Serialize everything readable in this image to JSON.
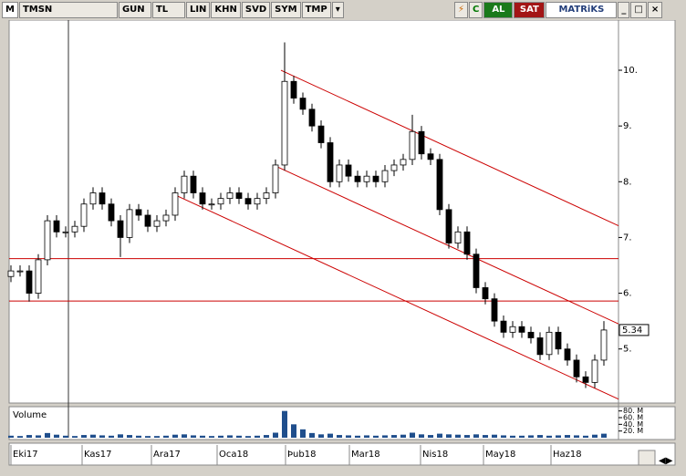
{
  "toolbar": {
    "logo": "M",
    "symbol": "TMSN",
    "buttons": [
      "GUN",
      "TL",
      "LIN",
      "KHN",
      "SVD",
      "SYM",
      "TMP"
    ],
    "buy": "AL",
    "sell": "SAT",
    "brand": "MATRiKS"
  },
  "chart_data": {
    "type": "candlestick",
    "xlim": [
      -0.2,
      66.6
    ],
    "xticks": [
      {
        "value": 0,
        "label": "Eki17"
      },
      {
        "value": 7.8,
        "label": "Kas17"
      },
      {
        "value": 15.4,
        "label": "Ara17"
      },
      {
        "value": 22.6,
        "label": "Oca18"
      },
      {
        "value": 30.1,
        "label": "Þub18"
      },
      {
        "value": 37.1,
        "label": "Mar18"
      },
      {
        "value": 44.9,
        "label": "Nis18"
      },
      {
        "value": 51.8,
        "label": "May18"
      },
      {
        "value": 59.2,
        "label": "Haz18"
      }
    ],
    "ylim": [
      4.03,
      10.9
    ],
    "yticks": [
      {
        "value": 10,
        "label": "10."
      },
      {
        "value": 9,
        "label": "9."
      },
      {
        "value": 8,
        "label": "8."
      },
      {
        "value": 7,
        "label": "7."
      },
      {
        "value": 6,
        "label": "6."
      },
      {
        "value": 5,
        "label": "5."
      }
    ],
    "last_price": 5.34,
    "cursor_x": 6.3,
    "hlines": [
      6.62,
      5.86
    ],
    "trendlines": [
      {
        "x": [
          29.6,
          66.6
        ],
        "y": [
          10.0,
          7.21
        ]
      },
      {
        "x": [
          29.3,
          66.6
        ],
        "y": [
          8.26,
          5.45
        ]
      },
      {
        "x": [
          18.3,
          66.6
        ],
        "y": [
          7.74,
          4.1
        ]
      }
    ],
    "line_color": "#cc0000",
    "open": [
      6.3,
      6.4,
      6.4,
      6.0,
      6.6,
      7.3,
      7.1,
      7.1,
      7.2,
      7.6,
      7.8,
      7.6,
      7.3,
      7.0,
      7.5,
      7.4,
      7.2,
      7.3,
      7.4,
      7.8,
      8.1,
      7.8,
      7.6,
      7.6,
      7.7,
      7.8,
      7.7,
      7.6,
      7.7,
      7.8,
      8.3,
      9.8,
      9.5,
      9.3,
      9.0,
      8.7,
      8.0,
      8.3,
      8.1,
      8.0,
      8.1,
      8.0,
      8.2,
      8.3,
      8.4,
      8.9,
      8.5,
      8.4,
      7.5,
      6.9,
      7.1,
      6.7,
      6.1,
      5.9,
      5.5,
      5.3,
      5.4,
      5.3,
      5.2,
      4.9,
      5.3,
      5.0,
      4.8,
      4.5,
      4.4,
      4.8
    ],
    "high": [
      6.5,
      6.5,
      6.5,
      6.7,
      7.4,
      7.4,
      7.2,
      7.3,
      7.7,
      7.9,
      7.9,
      7.7,
      7.4,
      7.6,
      7.6,
      7.5,
      7.4,
      7.5,
      7.9,
      8.2,
      8.2,
      7.9,
      7.7,
      7.8,
      7.9,
      7.9,
      7.8,
      7.8,
      7.9,
      8.4,
      10.5,
      9.9,
      9.6,
      9.4,
      9.1,
      8.8,
      8.4,
      8.4,
      8.2,
      8.2,
      8.2,
      8.3,
      8.4,
      8.5,
      9.2,
      9.0,
      8.6,
      8.5,
      7.6,
      7.2,
      7.2,
      6.8,
      6.2,
      6.0,
      5.6,
      5.5,
      5.5,
      5.4,
      5.3,
      5.4,
      5.4,
      5.1,
      4.9,
      4.6,
      4.9,
      5.5
    ],
    "low": [
      6.2,
      6.3,
      5.85,
      5.9,
      6.5,
      7.0,
      7.0,
      7.0,
      7.1,
      7.5,
      7.5,
      7.2,
      6.65,
      6.9,
      7.3,
      7.1,
      7.1,
      7.2,
      7.3,
      7.7,
      7.7,
      7.5,
      7.5,
      7.5,
      7.6,
      7.6,
      7.5,
      7.5,
      7.6,
      7.7,
      8.2,
      9.4,
      9.2,
      8.9,
      8.6,
      7.9,
      7.9,
      8.0,
      7.9,
      7.9,
      7.9,
      7.9,
      8.1,
      8.2,
      8.3,
      8.4,
      8.3,
      7.4,
      6.8,
      6.8,
      6.6,
      6.0,
      5.8,
      5.4,
      5.2,
      5.2,
      5.2,
      5.1,
      4.8,
      4.8,
      4.9,
      4.7,
      4.4,
      4.3,
      4.3,
      4.7
    ],
    "close": [
      6.4,
      6.4,
      6.0,
      6.6,
      7.3,
      7.1,
      7.1,
      7.2,
      7.6,
      7.8,
      7.6,
      7.3,
      7.0,
      7.5,
      7.4,
      7.2,
      7.3,
      7.4,
      7.8,
      8.1,
      7.8,
      7.6,
      7.6,
      7.7,
      7.8,
      7.7,
      7.6,
      7.7,
      7.8,
      8.3,
      9.8,
      9.5,
      9.3,
      9.0,
      8.7,
      8.0,
      8.3,
      8.1,
      8.0,
      8.1,
      8.0,
      8.2,
      8.3,
      8.4,
      8.9,
      8.5,
      8.4,
      7.5,
      6.9,
      7.1,
      6.7,
      6.1,
      5.9,
      5.5,
      5.3,
      5.4,
      5.3,
      5.2,
      4.9,
      5.3,
      5.0,
      4.8,
      4.5,
      4.4,
      4.8,
      5.34
    ],
    "volume_label": "Volume",
    "volume_color": "#1f4e8c",
    "volume_ylim": [
      0,
      90
    ],
    "volume_ticks": [
      {
        "value": 80,
        "label": "80. M"
      },
      {
        "value": 60,
        "label": "60. M"
      },
      {
        "value": 40,
        "label": "40. M"
      },
      {
        "value": 20,
        "label": "20. M"
      }
    ],
    "volume": [
      6,
      5,
      8,
      7,
      14,
      9,
      6,
      5,
      8,
      9,
      7,
      6,
      10,
      8,
      6,
      5,
      5,
      6,
      9,
      10,
      7,
      6,
      5,
      6,
      7,
      6,
      5,
      6,
      8,
      15,
      80,
      40,
      25,
      14,
      10,
      12,
      8,
      7,
      6,
      7,
      6,
      7,
      8,
      9,
      15,
      10,
      8,
      12,
      10,
      9,
      8,
      10,
      8,
      9,
      7,
      6,
      6,
      7,
      8,
      6,
      7,
      8,
      7,
      6,
      9,
      12
    ]
  }
}
